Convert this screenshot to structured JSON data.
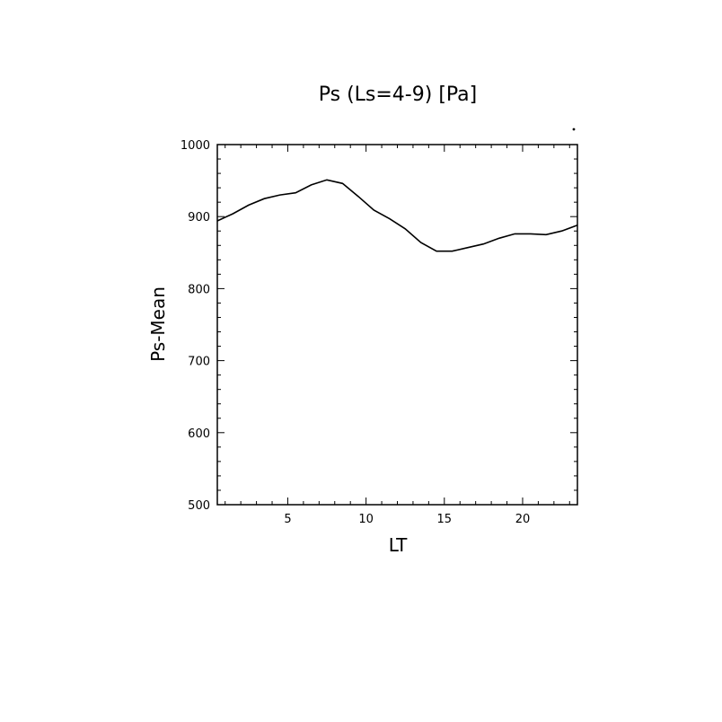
{
  "chart_data": {
    "type": "line",
    "title": "Ps (Ls=4-9) [Pa]",
    "xlabel": "LT",
    "ylabel": "Ps-Mean",
    "xlim": [
      0.5,
      23.5
    ],
    "ylim": [
      500,
      1000
    ],
    "xticks": [
      5,
      10,
      15,
      20
    ],
    "yticks": [
      500,
      600,
      700,
      800,
      900,
      1000
    ],
    "grid": false,
    "series": [
      {
        "x": [
          0.5,
          1.5,
          2.5,
          3.5,
          4.5,
          5.5,
          6.5,
          7.5,
          8.5,
          9.5,
          10.5,
          11.5,
          12.5,
          13.5,
          14.5,
          15.5,
          16.5,
          17.5,
          18.5,
          19.5,
          20.5,
          21.5,
          22.5,
          23.5
        ],
        "values": [
          894,
          904,
          916,
          925,
          930,
          933,
          944,
          951,
          946,
          928,
          909,
          897,
          883,
          864,
          852,
          852,
          857,
          862,
          870,
          876,
          876,
          875,
          880,
          888
        ]
      }
    ]
  }
}
